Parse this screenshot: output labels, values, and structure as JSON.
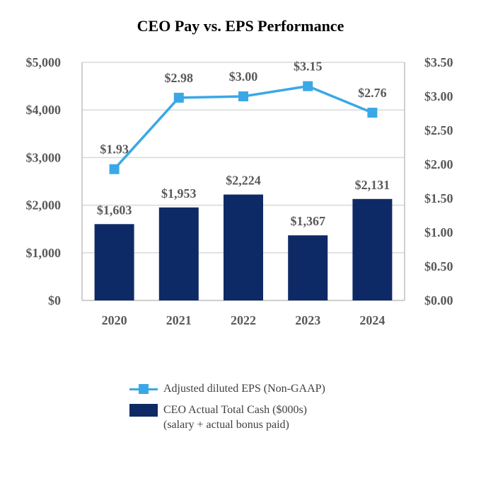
{
  "chart_data": {
    "type": "bar",
    "title": "CEO Pay vs. EPS Performance",
    "categories": [
      "2020",
      "2021",
      "2022",
      "2023",
      "2024"
    ],
    "series": [
      {
        "name": "CEO Actual Total Cash ($000s)\n(salary + actual bonus paid)",
        "type": "bar",
        "axis": "left",
        "color": "#0e2a66",
        "values": [
          1603,
          1953,
          2224,
          1367,
          2131
        ],
        "labels": [
          "$1,603",
          "$1,953",
          "$2,224",
          "$1,367",
          "$2,131"
        ]
      },
      {
        "name": "Adjusted diluted EPS (Non-GAAP)",
        "type": "line",
        "axis": "right",
        "color": "#3aa8e6",
        "values": [
          1.93,
          2.98,
          3.0,
          3.15,
          2.76
        ],
        "labels": [
          "$1.93",
          "$2.98",
          "$3.00",
          "$3.15",
          "$2.76"
        ]
      }
    ],
    "y_left": {
      "ylim": [
        0,
        5000
      ],
      "ticks": [
        0,
        1000,
        2000,
        3000,
        4000,
        5000
      ],
      "tick_labels": [
        "$0",
        "$1,000",
        "$2,000",
        "$3,000",
        "$4,000",
        "$5,000"
      ]
    },
    "y_right": {
      "ylim": [
        0,
        3.5
      ],
      "ticks": [
        0,
        0.5,
        1.0,
        1.5,
        2.0,
        2.5,
        3.0,
        3.5
      ],
      "tick_labels": [
        "$0.00",
        "$0.50",
        "$1.00",
        "$1.50",
        "$2.00",
        "$2.50",
        "$3.00",
        "$3.50"
      ]
    },
    "grid": true,
    "legend_position": "bottom"
  }
}
